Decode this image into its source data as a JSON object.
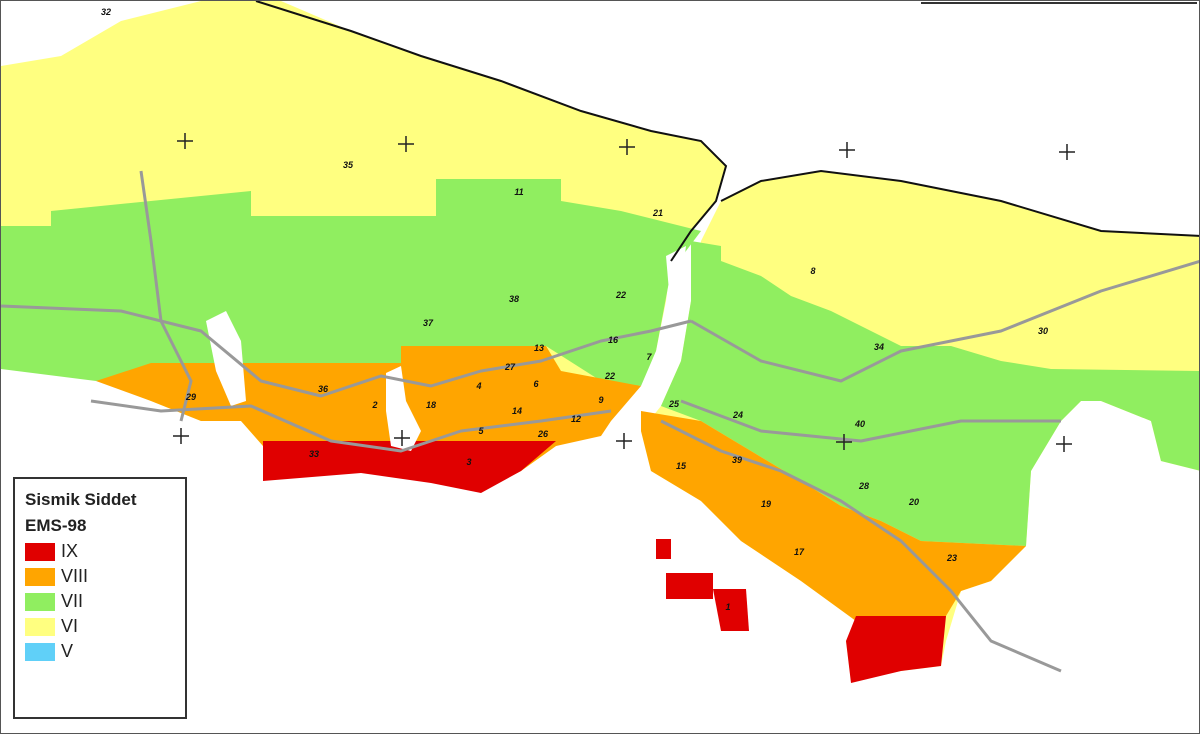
{
  "legend": {
    "title": "Sismik Siddet",
    "subtitle": "EMS-98",
    "items": [
      {
        "label": "IX",
        "color": "#e00000"
      },
      {
        "label": "VIII",
        "color": "#ffa500"
      },
      {
        "label": "VII",
        "color": "#90ee60"
      },
      {
        "label": "VI",
        "color": "#ffff80"
      },
      {
        "label": "V",
        "color": "#60d0f8"
      }
    ]
  },
  "zone_labels": [
    "32",
    "35",
    "11",
    "21",
    "38",
    "22",
    "37",
    "13",
    "16",
    "7",
    "27",
    "22",
    "29",
    "36",
    "2",
    "18",
    "4",
    "6",
    "14",
    "9",
    "12",
    "5",
    "26",
    "33",
    "3",
    "25",
    "24",
    "8",
    "30",
    "34",
    "40",
    "15",
    "39",
    "28",
    "20",
    "19",
    "17",
    "23",
    "1"
  ]
}
